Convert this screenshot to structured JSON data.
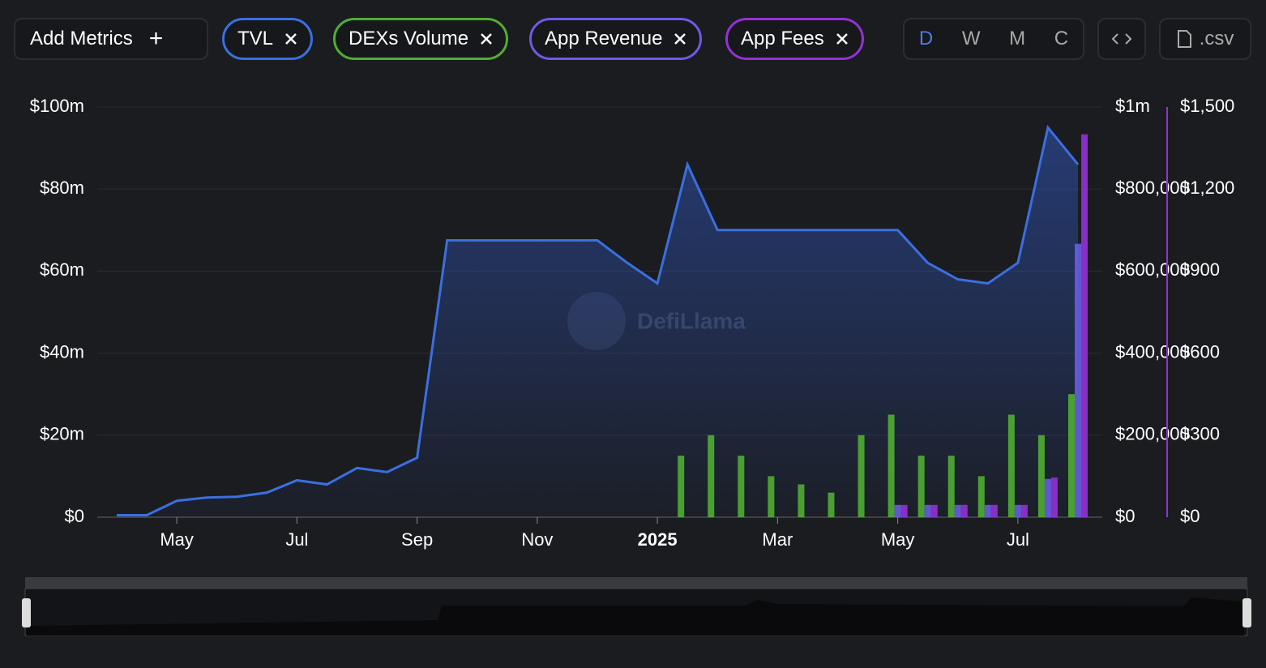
{
  "toolbar": {
    "add_metrics": "Add Metrics",
    "metrics": [
      "TVL",
      "DEXs Volume",
      "App Revenue",
      "App Fees"
    ],
    "periods": [
      "D",
      "W",
      "M",
      "C"
    ],
    "csv": ".csv"
  },
  "watermark": "DefiLlama",
  "chart_data": {
    "type": "bar-line",
    "categories": [
      null,
      null,
      "May",
      null,
      null,
      null,
      "Jul",
      null,
      null,
      null,
      "Sep",
      null,
      null,
      null,
      "Nov",
      null,
      null,
      null,
      "2025",
      null,
      null,
      null,
      "Mar",
      null,
      null,
      null,
      "May",
      null,
      null,
      null,
      "Jul",
      null,
      null
    ],
    "series": [
      {
        "name": "TVL",
        "type": "line",
        "color": "#3b6fe0",
        "axis": "y",
        "values": [
          0.5,
          0.5,
          4,
          4.8,
          5,
          6,
          9,
          8,
          12,
          11,
          14.5,
          67.5,
          67.5,
          67.5,
          67.5,
          67.5,
          67.5,
          62,
          57,
          86,
          70,
          70,
          70,
          70,
          70,
          70,
          70,
          62,
          58,
          57,
          62,
          95,
          86
        ]
      },
      {
        "name": "DEXs Volume",
        "type": "bar",
        "color": "#4fae32",
        "axis": "y2",
        "values": [
          null,
          null,
          null,
          null,
          null,
          null,
          null,
          null,
          null,
          null,
          null,
          null,
          null,
          null,
          null,
          null,
          null,
          null,
          null,
          150000,
          200000,
          150000,
          100000,
          80000,
          60000,
          200000,
          250000,
          150000,
          150000,
          100000,
          250000,
          200000,
          300000
        ]
      },
      {
        "name": "App Revenue",
        "type": "bar",
        "color": "#6a5ce6",
        "axis": "y3",
        "values": [
          null,
          null,
          null,
          null,
          null,
          null,
          null,
          null,
          null,
          null,
          null,
          null,
          null,
          null,
          null,
          null,
          null,
          null,
          null,
          null,
          null,
          null,
          null,
          null,
          null,
          null,
          45,
          45,
          45,
          45,
          45,
          140,
          1000
        ]
      },
      {
        "name": "App Fees",
        "type": "bar",
        "color": "#9431d6",
        "axis": "y3",
        "values": [
          null,
          null,
          null,
          null,
          null,
          null,
          null,
          null,
          null,
          null,
          null,
          null,
          null,
          null,
          null,
          null,
          null,
          null,
          null,
          null,
          null,
          null,
          null,
          null,
          null,
          null,
          45,
          45,
          45,
          45,
          45,
          145,
          1400
        ]
      }
    ],
    "ylim": [
      0,
      100
    ],
    "yticks": [
      {
        "value": 0,
        "label": "$0"
      },
      {
        "value": 20,
        "label": "$20m"
      },
      {
        "value": 40,
        "label": "$40m"
      },
      {
        "value": 60,
        "label": "$60m"
      },
      {
        "value": 80,
        "label": "$80m"
      },
      {
        "value": 100,
        "label": "$100m"
      }
    ],
    "y2lim": [
      0,
      1000000
    ],
    "y2ticks": [
      {
        "value": 0,
        "label": "$0"
      },
      {
        "value": 200000,
        "label": "$200,000"
      },
      {
        "value": 400000,
        "label": "$400,000"
      },
      {
        "value": 600000,
        "label": "$600,000"
      },
      {
        "value": 800000,
        "label": "$800,000"
      },
      {
        "value": 1000000,
        "label": "$1m"
      }
    ],
    "y3lim": [
      0,
      1500
    ],
    "y3ticks": [
      {
        "value": 0,
        "label": "$0"
      },
      {
        "value": 300,
        "label": "$300"
      },
      {
        "value": 600,
        "label": "$600"
      },
      {
        "value": 900,
        "label": "$900"
      },
      {
        "value": 1200,
        "label": "$1,200"
      },
      {
        "value": 1500,
        "label": "$1,500"
      }
    ],
    "grid": true
  }
}
